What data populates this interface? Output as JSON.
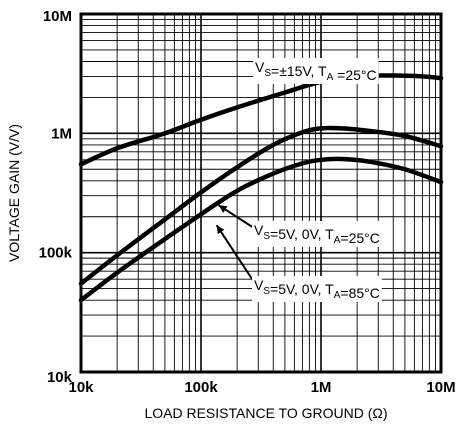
{
  "chart_data": {
    "type": "line",
    "xlabel": "LOAD RESISTANCE TO GROUND (Ω)",
    "ylabel": "VOLTAGE GAIN (V/V)",
    "xscale": "log",
    "yscale": "log",
    "xlim": [
      10000,
      10000000
    ],
    "ylim": [
      10000,
      10000000
    ],
    "grid": true,
    "x_ticks": [
      {
        "value": 10000,
        "label": "10k"
      },
      {
        "value": 100000,
        "label": "100k"
      },
      {
        "value": 1000000,
        "label": "1M"
      },
      {
        "value": 10000000,
        "label": "10M"
      }
    ],
    "y_ticks": [
      {
        "value": 10000,
        "label": "10k"
      },
      {
        "value": 100000,
        "label": "100k"
      },
      {
        "value": 1000000,
        "label": "1M"
      },
      {
        "value": 10000000,
        "label": "10M"
      }
    ],
    "series": [
      {
        "x": [
          10000,
          20000,
          50000,
          100000,
          200000,
          500000,
          1000000,
          2000000,
          4000000,
          7000000,
          10000000
        ],
        "y": [
          550000,
          750000,
          1000000,
          1300000,
          1650000,
          2200000,
          2700000,
          3000000,
          3050000,
          3000000,
          2900000
        ]
      },
      {
        "x": [
          10000,
          20000,
          50000,
          100000,
          200000,
          400000,
          700000,
          1000000,
          1500000,
          2500000,
          5000000,
          10000000
        ],
        "y": [
          55000,
          95000,
          190000,
          320000,
          520000,
          800000,
          1020000,
          1100000,
          1100000,
          1050000,
          950000,
          780000
        ]
      },
      {
        "x": [
          10000,
          20000,
          50000,
          100000,
          200000,
          400000,
          700000,
          1000000,
          1500000,
          2500000,
          5000000,
          10000000
        ],
        "y": [
          40000,
          68000,
          130000,
          210000,
          330000,
          460000,
          560000,
          600000,
          610000,
          580000,
          500000,
          390000
        ]
      }
    ],
    "annotations": [
      {
        "id": "a1",
        "parts": [
          {
            "t": "V",
            "sub": false
          },
          {
            "t": "S",
            "sub": true
          },
          {
            "t": "=±15V, T",
            "sub": false
          },
          {
            "t": "A",
            "sub": true
          },
          {
            "t": " =25°C",
            "sub": false
          }
        ]
      },
      {
        "id": "a2",
        "parts": [
          {
            "t": "V",
            "sub": false
          },
          {
            "t": "S",
            "sub": true
          },
          {
            "t": "=5V, 0V, T",
            "sub": false
          },
          {
            "t": "A",
            "sub": true
          },
          {
            "t": "=25°C",
            "sub": false
          }
        ]
      },
      {
        "id": "a3",
        "parts": [
          {
            "t": "V",
            "sub": false
          },
          {
            "t": "S",
            "sub": true
          },
          {
            "t": "=5V, 0V, T",
            "sub": false
          },
          {
            "t": "A",
            "sub": true
          },
          {
            "t": "=85°C",
            "sub": false
          }
        ]
      }
    ]
  }
}
